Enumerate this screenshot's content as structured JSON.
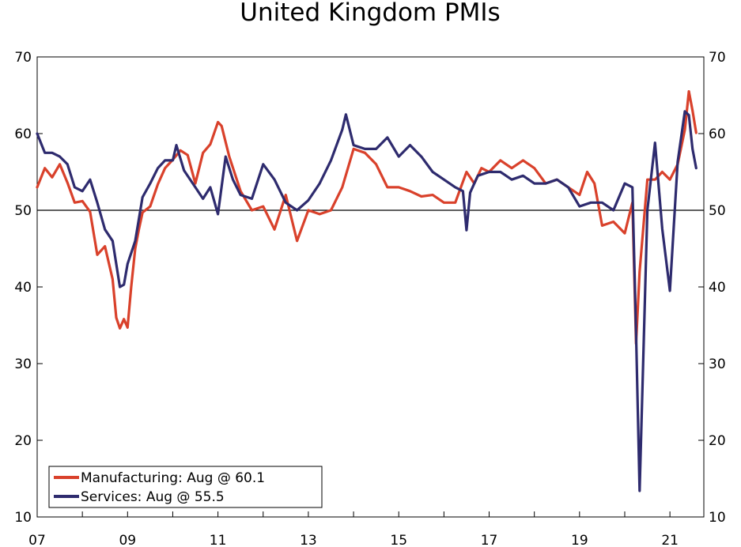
{
  "chart_data": {
    "type": "line",
    "title": "United Kingdom PMIs",
    "xlabel": "",
    "ylabel": "",
    "ylim": [
      10,
      70
    ],
    "y_ticks": [
      10,
      20,
      30,
      40,
      50,
      60,
      70
    ],
    "xlim": [
      2007.0,
      2021.75
    ],
    "x_tick_values": [
      2007,
      2009,
      2011,
      2013,
      2015,
      2017,
      2019,
      2021
    ],
    "x_tick_labels": [
      "07",
      "09",
      "11",
      "13",
      "15",
      "17",
      "19",
      "21"
    ],
    "reference_line": 50,
    "grid": false,
    "legend_position": "bottom-left",
    "colors": {
      "Manufacturing": "#d9412b",
      "Services": "#2e2b6e"
    },
    "series": [
      {
        "name": "Manufacturing",
        "legend_label": "Manufacturing: Aug @ 60.1",
        "x": [
          2007.0,
          2007.17,
          2007.33,
          2007.5,
          2007.67,
          2007.83,
          2008.0,
          2008.17,
          2008.33,
          2008.5,
          2008.67,
          2008.75,
          2008.83,
          2008.92,
          2009.0,
          2009.08,
          2009.17,
          2009.25,
          2009.33,
          2009.5,
          2009.67,
          2009.83,
          2010.0,
          2010.17,
          2010.33,
          2010.5,
          2010.67,
          2010.83,
          2011.0,
          2011.08,
          2011.25,
          2011.5,
          2011.75,
          2012.0,
          2012.25,
          2012.5,
          2012.75,
          2013.0,
          2013.25,
          2013.5,
          2013.75,
          2014.0,
          2014.25,
          2014.5,
          2014.75,
          2015.0,
          2015.25,
          2015.5,
          2015.75,
          2016.0,
          2016.25,
          2016.5,
          2016.67,
          2016.83,
          2017.0,
          2017.25,
          2017.5,
          2017.75,
          2018.0,
          2018.25,
          2018.5,
          2018.75,
          2019.0,
          2019.17,
          2019.33,
          2019.5,
          2019.75,
          2020.0,
          2020.17,
          2020.25,
          2020.33,
          2020.5,
          2020.67,
          2020.83,
          2021.0,
          2021.17,
          2021.33,
          2021.42,
          2021.5,
          2021.58
        ],
        "values": [
          53.0,
          55.5,
          54.3,
          56.0,
          53.6,
          51.0,
          51.2,
          49.8,
          44.2,
          45.3,
          41.0,
          36.0,
          34.6,
          35.8,
          34.7,
          40.0,
          45.0,
          47.5,
          49.7,
          50.5,
          53.4,
          55.5,
          56.6,
          57.8,
          57.2,
          53.5,
          57.5,
          58.6,
          61.5,
          61.0,
          57.0,
          52.5,
          50.0,
          50.5,
          47.5,
          52.0,
          46.0,
          50.0,
          49.5,
          50.0,
          53.0,
          58.0,
          57.5,
          56.0,
          53.0,
          53.0,
          52.5,
          51.8,
          52.0,
          51.0,
          51.0,
          55.0,
          53.5,
          55.5,
          55.0,
          56.5,
          55.5,
          56.5,
          55.5,
          53.5,
          54.0,
          53.0,
          52.0,
          55.0,
          53.5,
          48.0,
          48.5,
          47.0,
          51.0,
          32.6,
          42.0,
          54.0,
          54.0,
          55.0,
          54.0,
          56.0,
          60.5,
          65.5,
          63.0,
          60.1
        ]
      },
      {
        "name": "Services",
        "legend_label": "Services: Aug @ 55.5",
        "x": [
          2007.0,
          2007.17,
          2007.33,
          2007.5,
          2007.67,
          2007.83,
          2008.0,
          2008.17,
          2008.33,
          2008.5,
          2008.67,
          2008.75,
          2008.83,
          2008.92,
          2009.0,
          2009.17,
          2009.33,
          2009.5,
          2009.67,
          2009.83,
          2010.0,
          2010.08,
          2010.25,
          2010.5,
          2010.67,
          2010.83,
          2011.0,
          2011.17,
          2011.33,
          2011.5,
          2011.75,
          2012.0,
          2012.25,
          2012.5,
          2012.75,
          2013.0,
          2013.25,
          2013.5,
          2013.75,
          2013.83,
          2014.0,
          2014.25,
          2014.5,
          2014.75,
          2015.0,
          2015.25,
          2015.5,
          2015.75,
          2016.0,
          2016.25,
          2016.42,
          2016.5,
          2016.58,
          2016.75,
          2017.0,
          2017.25,
          2017.5,
          2017.75,
          2018.0,
          2018.25,
          2018.5,
          2018.75,
          2019.0,
          2019.25,
          2019.5,
          2019.75,
          2020.0,
          2020.17,
          2020.25,
          2020.33,
          2020.5,
          2020.67,
          2020.83,
          2021.0,
          2021.17,
          2021.33,
          2021.42,
          2021.5,
          2021.58
        ],
        "values": [
          60.0,
          57.5,
          57.5,
          57.0,
          56.0,
          53.0,
          52.5,
          54.0,
          51.0,
          47.5,
          46.0,
          43.0,
          40.0,
          40.3,
          43.0,
          46.0,
          51.7,
          53.5,
          55.5,
          56.5,
          56.5,
          58.5,
          55.2,
          53.0,
          51.5,
          53.0,
          49.5,
          57.0,
          54.0,
          52.0,
          51.5,
          56.0,
          54.0,
          51.0,
          50.0,
          51.3,
          53.5,
          56.5,
          60.5,
          62.5,
          58.5,
          58.0,
          58.0,
          59.5,
          57.0,
          58.5,
          57.0,
          55.0,
          54.0,
          53.0,
          52.5,
          47.4,
          52.3,
          54.5,
          55.0,
          55.0,
          54.0,
          54.5,
          53.5,
          53.5,
          54.0,
          53.0,
          50.5,
          51.0,
          51.0,
          50.0,
          53.5,
          53.0,
          34.0,
          13.4,
          50.0,
          58.8,
          47.6,
          39.5,
          56.3,
          62.9,
          62.4,
          58.0,
          55.5
        ]
      }
    ]
  }
}
